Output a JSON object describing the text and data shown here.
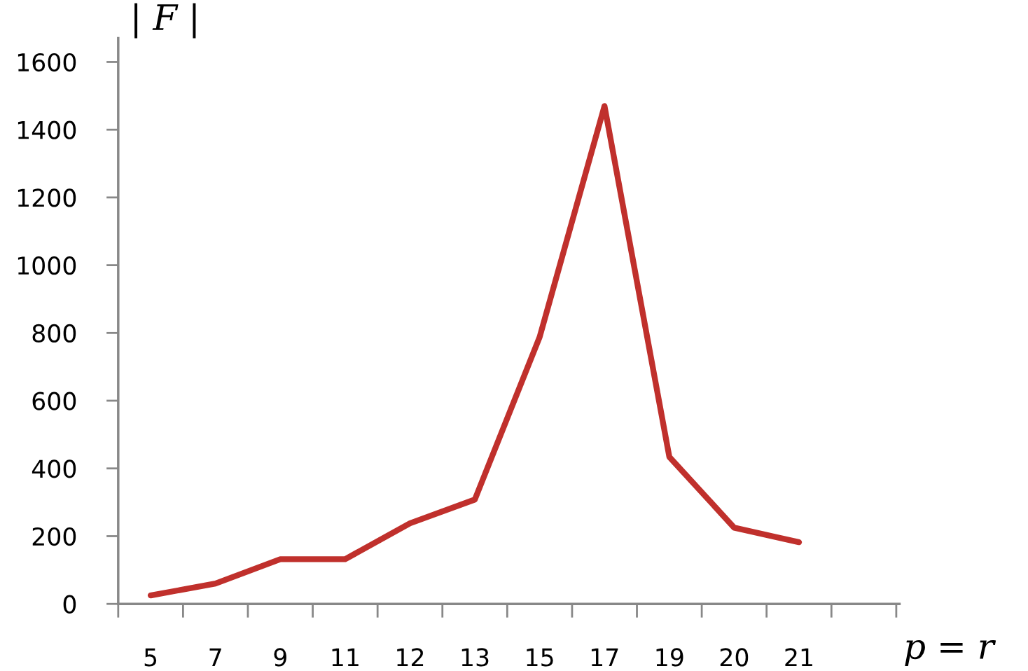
{
  "chart_data": {
    "type": "line",
    "ylabel": "| F |",
    "xlabel": "p = r",
    "categories": [
      "5",
      "7",
      "9",
      "11",
      "12",
      "13",
      "15",
      "17",
      "19",
      "20",
      "21",
      null
    ],
    "series": [
      {
        "color": "#c0302c",
        "values": [
          25,
          60,
          132,
          132,
          238,
          308,
          788,
          1470,
          434,
          225,
          182,
          null
        ]
      }
    ],
    "ylim": [
      0,
      1670
    ],
    "yticks": [
      0,
      200,
      400,
      600,
      800,
      1000,
      1200,
      1400,
      1600
    ],
    "grid": false,
    "legend": false,
    "marker": "none",
    "line_style": "solid"
  }
}
